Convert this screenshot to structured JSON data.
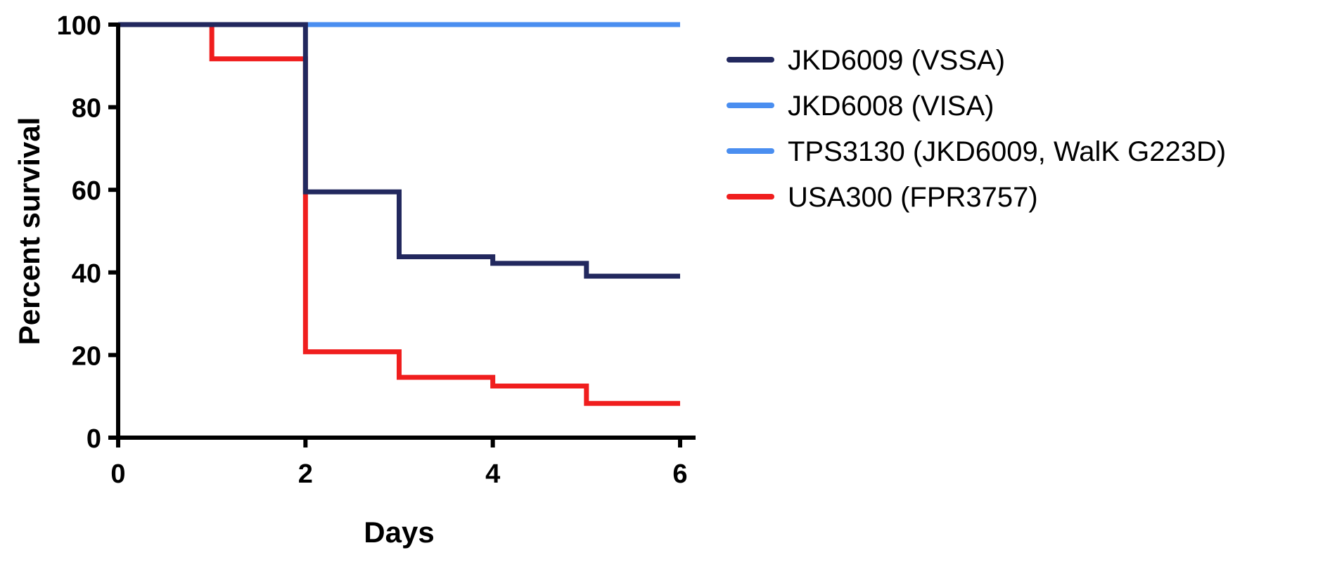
{
  "chart_data": {
    "type": "line",
    "subtype": "kaplan-meier-step",
    "title": "",
    "xlabel": "Days",
    "ylabel": "Percent survival",
    "xlim": [
      0,
      6
    ],
    "ylim": [
      0,
      100
    ],
    "xticks": [
      0,
      2,
      4,
      6
    ],
    "yticks": [
      0,
      20,
      40,
      60,
      80,
      100
    ],
    "grid": false,
    "legend_position": "right",
    "series": [
      {
        "name": "JKD6009 (VSSA)",
        "color": "#22285E",
        "x": [
          0,
          2,
          3,
          4,
          5,
          6
        ],
        "y": [
          100,
          59.5,
          43.8,
          42.2,
          39.1,
          39.1
        ]
      },
      {
        "name": "JKD6008 (VISA)",
        "color": "#4A8EF0",
        "x": [
          0,
          6
        ],
        "y": [
          100,
          100
        ]
      },
      {
        "name": "TPS3130 (JKD6009, WalK G223D)",
        "color": "#4A8EF0",
        "x": [
          0,
          6
        ],
        "y": [
          100,
          100
        ]
      },
      {
        "name": "USA300 (FPR3757)",
        "color": "#F01E1E",
        "x": [
          0,
          1,
          2,
          3,
          4,
          5,
          6
        ],
        "y": [
          100,
          91.7,
          20.8,
          14.6,
          12.5,
          8.3,
          8.3
        ]
      }
    ]
  }
}
